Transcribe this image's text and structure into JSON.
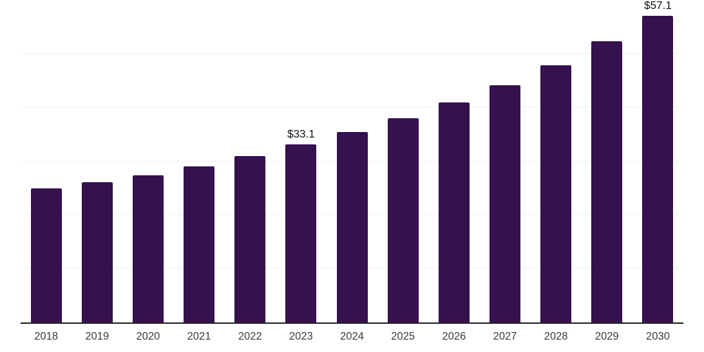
{
  "chart_data": {
    "type": "bar",
    "title": "",
    "xlabel": "",
    "ylabel": "",
    "categories": [
      "2018",
      "2019",
      "2020",
      "2021",
      "2022",
      "2023",
      "2024",
      "2025",
      "2026",
      "2027",
      "2028",
      "2029",
      "2030"
    ],
    "values": [
      24.9,
      26.1,
      27.4,
      29.1,
      30.9,
      33.1,
      35.5,
      38.0,
      41.0,
      44.2,
      47.8,
      52.3,
      57.1
    ],
    "value_labels": [
      {
        "category": "2023",
        "text": "$33.1"
      },
      {
        "category": "2030",
        "text": "$57.1"
      }
    ],
    "ylim": [
      0,
      60
    ],
    "gridline_values": [
      10,
      20,
      30,
      40,
      50
    ],
    "grid": true,
    "legend_position": "none",
    "colors": {
      "bar": "#35114E",
      "gridline": "#F1F1F1",
      "axis_line": "#262626",
      "tick_label": "#3A3A3A",
      "value_label": "#111111",
      "background": "#FFFFFF"
    }
  }
}
